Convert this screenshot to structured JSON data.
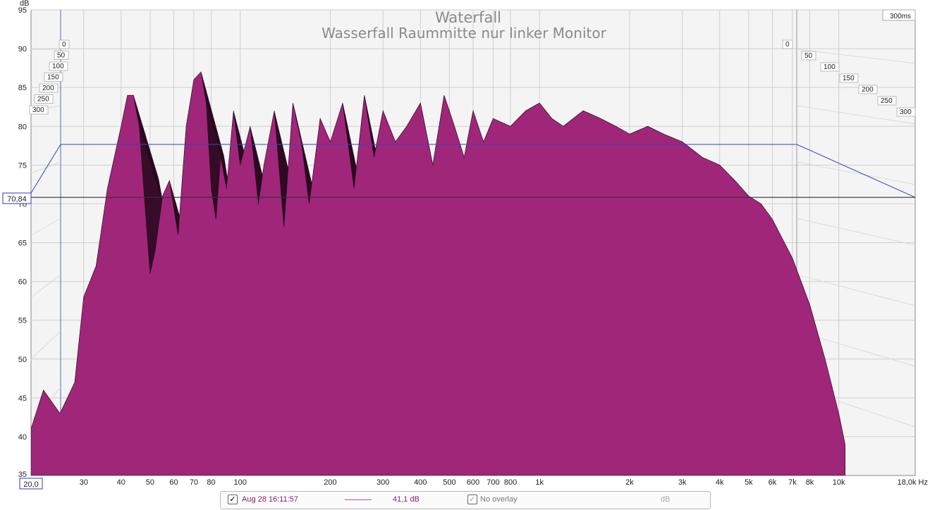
{
  "chart_data": {
    "type": "area",
    "title": "Waterfall",
    "subtitle": "Wasserfall Raummitte nur linker Monitor",
    "ylabel": "dB",
    "xlabel": "Hz",
    "x_scale": "log",
    "xlim": [
      20,
      18000
    ],
    "ylim": [
      35,
      95
    ],
    "x_ticks": [
      "30",
      "40",
      "50",
      "60",
      "70",
      "80",
      "100",
      "200",
      "300",
      "400",
      "500",
      "600",
      "700",
      "800",
      "1k",
      "2k",
      "3k",
      "4k",
      "5k",
      "6k",
      "7k",
      "8k",
      "10k"
    ],
    "x_tick_values": [
      30,
      40,
      50,
      60,
      70,
      80,
      100,
      200,
      300,
      400,
      500,
      600,
      700,
      800,
      1000,
      2000,
      3000,
      4000,
      5000,
      6000,
      7000,
      8000,
      10000
    ],
    "x_end_label": "18,0k Hz",
    "y_ticks": [
      40,
      45,
      50,
      55,
      60,
      65,
      70,
      75,
      80,
      85,
      90,
      95
    ],
    "time_axis": {
      "unit": "ms",
      "ticks": [
        "0",
        "50",
        "100",
        "150",
        "200",
        "250",
        "300"
      ],
      "max_label": "300ms"
    },
    "x_start_readout": "20,0",
    "y_cursor_readout": "70,84",
    "y_cursor_value": 70.84,
    "series_color": "#a0267a",
    "front_curve": {
      "x": [
        20,
        22,
        25,
        28,
        30,
        33,
        36,
        40,
        42,
        44,
        46,
        48,
        50,
        52,
        55,
        58,
        62,
        66,
        70,
        74,
        77,
        80,
        83,
        86,
        90,
        95,
        100,
        108,
        115,
        120,
        130,
        140,
        150,
        160,
        170,
        185,
        200,
        220,
        240,
        260,
        280,
        300,
        330,
        360,
        400,
        440,
        480,
        520,
        560,
        600,
        650,
        700,
        800,
        900,
        1000,
        1100,
        1200,
        1400,
        1600,
        1800,
        2000,
        2300,
        2600,
        3000,
        3500,
        4000,
        4500,
        5000,
        5500,
        6000,
        7000,
        8000,
        9000,
        10000,
        10500
      ],
      "y": [
        41,
        46,
        43,
        47,
        58,
        62,
        72,
        80,
        84,
        84,
        80,
        70,
        61,
        64,
        71,
        73,
        66,
        80,
        86,
        87,
        83,
        72,
        68,
        76,
        72,
        82,
        75,
        80,
        70,
        75,
        82,
        67,
        83,
        78,
        70,
        81,
        78,
        83,
        72,
        84,
        76,
        82,
        78,
        80,
        83,
        75,
        84,
        80,
        76,
        82,
        78,
        81,
        80,
        82,
        83,
        81,
        80,
        82,
        81,
        80,
        79,
        80,
        79,
        78,
        76,
        75,
        73,
        71,
        70,
        68,
        63,
        57,
        50,
        43,
        39
      ]
    },
    "decay_slices": 40,
    "decay_per_slice_db": 0.35,
    "legend": {
      "measurement": "Aug 28 16:11:57",
      "level": "41,1 dB",
      "overlay": "No overlay",
      "overlay_unit": "dB"
    }
  }
}
